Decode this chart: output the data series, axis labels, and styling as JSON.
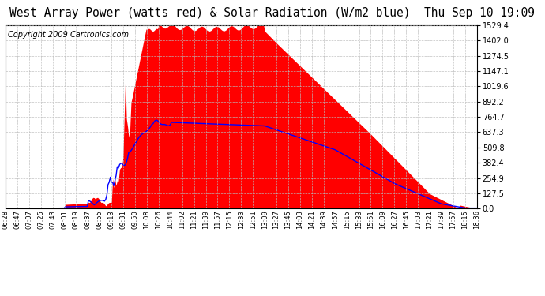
{
  "title": "West Array Power (watts red) & Solar Radiation (W/m2 blue)  Thu Sep 10 19:09",
  "copyright": "Copyright 2009 Cartronics.com",
  "y_ticks": [
    0.0,
    127.5,
    254.9,
    382.4,
    509.8,
    637.3,
    764.7,
    892.2,
    1019.6,
    1147.1,
    1274.5,
    1402.0,
    1529.4
  ],
  "x_tick_labels": [
    "06:28",
    "06:47",
    "07:07",
    "07:25",
    "07:43",
    "08:01",
    "08:19",
    "08:37",
    "08:55",
    "09:13",
    "09:31",
    "09:50",
    "10:08",
    "10:26",
    "10:44",
    "11:02",
    "11:21",
    "11:39",
    "11:57",
    "12:15",
    "12:33",
    "12:51",
    "13:09",
    "13:27",
    "13:45",
    "14:03",
    "14:21",
    "14:39",
    "14:57",
    "15:15",
    "15:33",
    "15:51",
    "16:09",
    "16:27",
    "16:45",
    "17:03",
    "17:21",
    "17:39",
    "17:57",
    "18:15",
    "18:36"
  ],
  "fill_color": "#FF0000",
  "line_color": "#0000FF",
  "background_color": "#FFFFFF",
  "grid_color": "#BBBBBB",
  "title_color": "#000000",
  "title_fontsize": 10.5,
  "copyright_fontsize": 7
}
